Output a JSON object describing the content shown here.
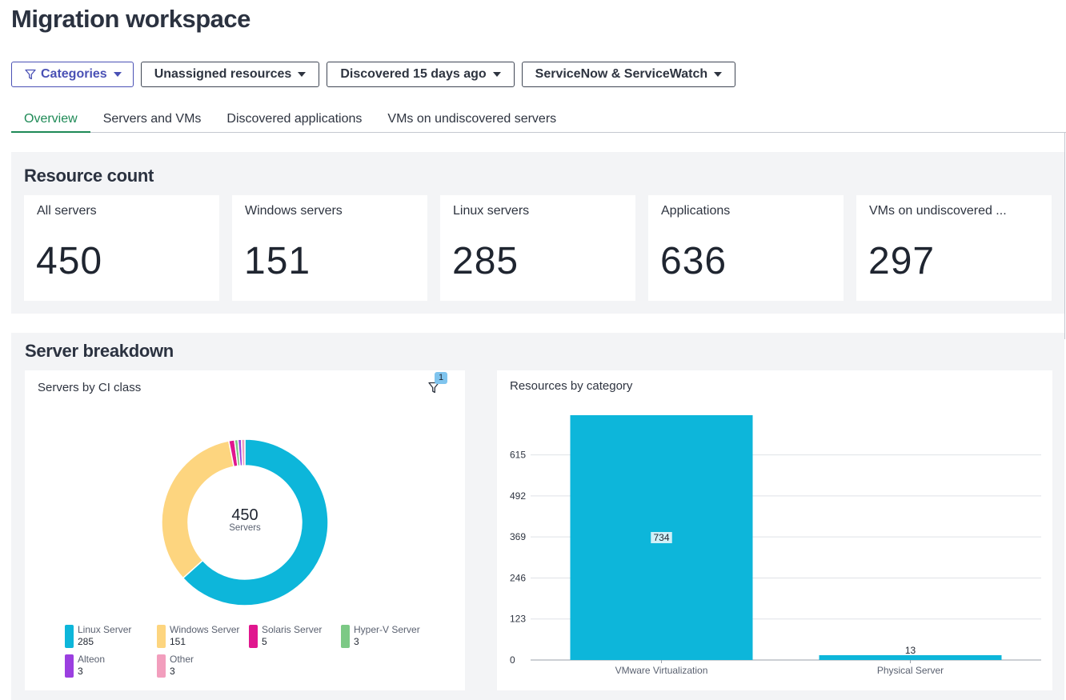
{
  "page": {
    "title": "Migration workspace"
  },
  "filters": [
    {
      "label": "Categories",
      "icon": "filter-icon"
    },
    {
      "label": "Unassigned resources"
    },
    {
      "label": "Discovered 15 days ago"
    },
    {
      "label": "ServiceNow & ServiceWatch"
    }
  ],
  "tabs": [
    {
      "label": "Overview",
      "active": true
    },
    {
      "label": "Servers and VMs"
    },
    {
      "label": "Discovered applications"
    },
    {
      "label": "VMs on undiscovered servers"
    }
  ],
  "resource_count": {
    "title": "Resource count",
    "cards": [
      {
        "label": "All servers",
        "value": "450"
      },
      {
        "label": "Windows servers",
        "value": "151"
      },
      {
        "label": "Linux servers",
        "value": "285"
      },
      {
        "label": "Applications",
        "value": "636"
      },
      {
        "label": "VMs on undiscovered ...",
        "value": "297"
      }
    ]
  },
  "server_breakdown": {
    "title": "Server breakdown",
    "ci_panel": {
      "title": "Servers by CI class",
      "filter_badge": "1",
      "center_value": "450",
      "center_label": "Servers"
    },
    "category_panel": {
      "title": "Resources by category"
    }
  },
  "chart_data": [
    {
      "type": "pie",
      "title": "Servers by CI class",
      "categories": [
        "Linux Server",
        "Windows Server",
        "Solaris Server",
        "Hyper-V Server",
        "Alteon",
        "Other"
      ],
      "values": [
        285,
        151,
        5,
        3,
        3,
        3
      ],
      "colors": [
        "#0db6da",
        "#fdd57f",
        "#e0168e",
        "#7cc985",
        "#9b3fe0",
        "#f29ebd"
      ]
    },
    {
      "type": "bar",
      "title": "Resources by category",
      "categories": [
        "VMware Virtualization",
        "Physical Server"
      ],
      "values": [
        734,
        13
      ],
      "yticks": [
        0,
        123,
        246,
        369,
        492,
        615
      ],
      "ylim": [
        0,
        734
      ],
      "color": "#0db6da",
      "grid": true
    }
  ]
}
